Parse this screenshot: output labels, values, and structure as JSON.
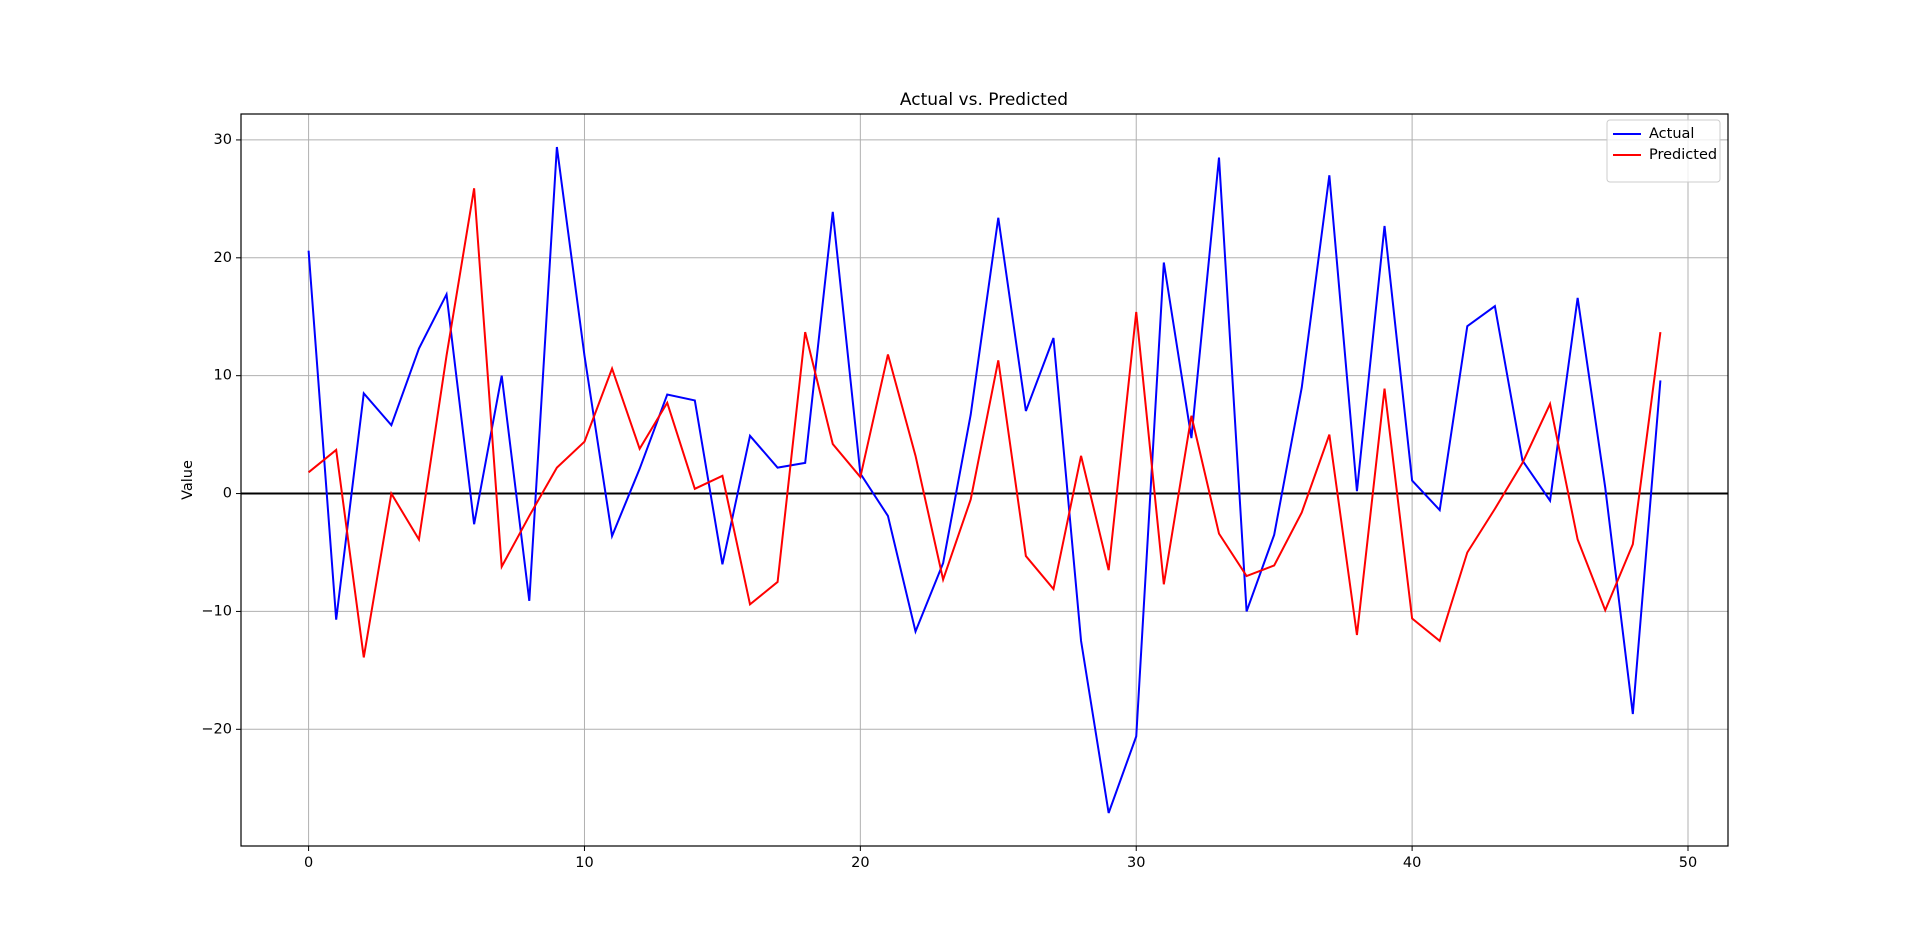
{
  "chart_data": {
    "type": "line",
    "title": "Actual vs. Predicted",
    "ylabel": "Value",
    "x": [
      0,
      1,
      2,
      3,
      4,
      5,
      6,
      7,
      8,
      9,
      10,
      11,
      12,
      13,
      14,
      15,
      16,
      17,
      18,
      19,
      20,
      21,
      22,
      23,
      24,
      25,
      26,
      27,
      28,
      29,
      30,
      31,
      32,
      33,
      34,
      35,
      36,
      37,
      38,
      39,
      40,
      41,
      42,
      43,
      44,
      45,
      46,
      47,
      48,
      49
    ],
    "series": [
      {
        "name": "Actual",
        "color": "#0000ff",
        "values": [
          20.6,
          -10.7,
          8.5,
          5.8,
          12.3,
          16.9,
          -2.6,
          10.0,
          -9.1,
          29.4,
          11.7,
          -3.6,
          2.1,
          8.4,
          7.9,
          -6.0,
          4.9,
          2.2,
          2.6,
          23.9,
          1.7,
          -1.9,
          -11.7,
          -5.9,
          6.7,
          23.4,
          7.0,
          13.2,
          -12.5,
          -27.1,
          -20.6,
          19.6,
          4.7,
          28.5,
          -10.0,
          -3.5,
          9.0,
          27.0,
          0.2,
          22.7,
          1.1,
          -1.4,
          14.2,
          15.9,
          2.8,
          -0.6,
          16.6,
          0.5,
          -18.7,
          9.6
        ]
      },
      {
        "name": "Predicted",
        "color": "#ff0000",
        "values": [
          1.8,
          3.7,
          -13.9,
          0,
          -3.9,
          11.7,
          25.9,
          -6.2,
          -1.9,
          2.2,
          4.4,
          10.6,
          3.8,
          7.7,
          0.4,
          1.5,
          -9.4,
          -7.5,
          13.7,
          4.2,
          1.4,
          11.8,
          3.2,
          -7.3,
          -0.5,
          11.3,
          -5.3,
          -8.1,
          3.2,
          -6.5,
          15.4,
          -7.7,
          6.6,
          -3.4,
          -7.0,
          -6.1,
          -1.6,
          5.0,
          -12.0,
          8.9,
          -10.6,
          -12.5,
          -5.0,
          -1.3,
          2.6,
          7.6,
          -3.9,
          -9.9,
          -4.3,
          13.7
        ]
      }
    ],
    "hline": 0,
    "hline_color": "#000000",
    "xlim": [
      -2.45,
      51.45
    ],
    "xticks": [
      0,
      10,
      20,
      30,
      40,
      50
    ],
    "ylim": [
      -29.9,
      32.2
    ],
    "yticks": [
      {
        "value": -20,
        "label": "−20"
      },
      {
        "value": -10,
        "label": "−10"
      },
      0,
      10,
      20,
      30
    ],
    "grid": true,
    "legend": "upper-right"
  }
}
